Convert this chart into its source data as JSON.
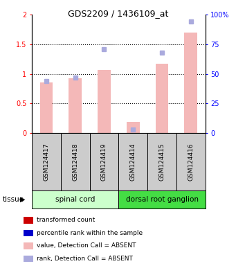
{
  "title": "GDS2209 / 1436109_at",
  "samples": [
    "GSM124417",
    "GSM124418",
    "GSM124419",
    "GSM124414",
    "GSM124415",
    "GSM124416"
  ],
  "bar_values": [
    0.85,
    0.93,
    1.07,
    0.19,
    1.17,
    1.7
  ],
  "rank_values": [
    44,
    47,
    71,
    3,
    68,
    94
  ],
  "detection_call": [
    "ABSENT",
    "ABSENT",
    "ABSENT",
    "ABSENT",
    "ABSENT",
    "ABSENT"
  ],
  "bar_color_present": "#cc0000",
  "bar_color_absent": "#f4b8b8",
  "rank_color_present": "#0000cc",
  "rank_color_absent": "#aaaadd",
  "groups": [
    {
      "label": "spinal cord",
      "start": 0,
      "end": 3,
      "color": "#ccffcc"
    },
    {
      "label": "dorsal root ganglion",
      "start": 3,
      "end": 6,
      "color": "#44dd44"
    }
  ],
  "ylim_left": [
    0,
    2
  ],
  "ylim_right": [
    0,
    100
  ],
  "yticks_left": [
    0,
    0.5,
    1.0,
    1.5,
    2.0
  ],
  "ytick_labels_left": [
    "0",
    "0.5",
    "1",
    "1.5",
    "2"
  ],
  "yticks_right": [
    0,
    25,
    50,
    75,
    100
  ],
  "ytick_labels_right": [
    "0",
    "25",
    "50",
    "75",
    "100%"
  ],
  "tissue_label": "tissue",
  "legend_items": [
    {
      "label": "transformed count",
      "color": "#cc0000"
    },
    {
      "label": "percentile rank within the sample",
      "color": "#0000cc"
    },
    {
      "label": "value, Detection Call = ABSENT",
      "color": "#f4b8b8"
    },
    {
      "label": "rank, Detection Call = ABSENT",
      "color": "#aaaadd"
    }
  ],
  "sample_box_color": "#cccccc",
  "background_color": "#ffffff"
}
